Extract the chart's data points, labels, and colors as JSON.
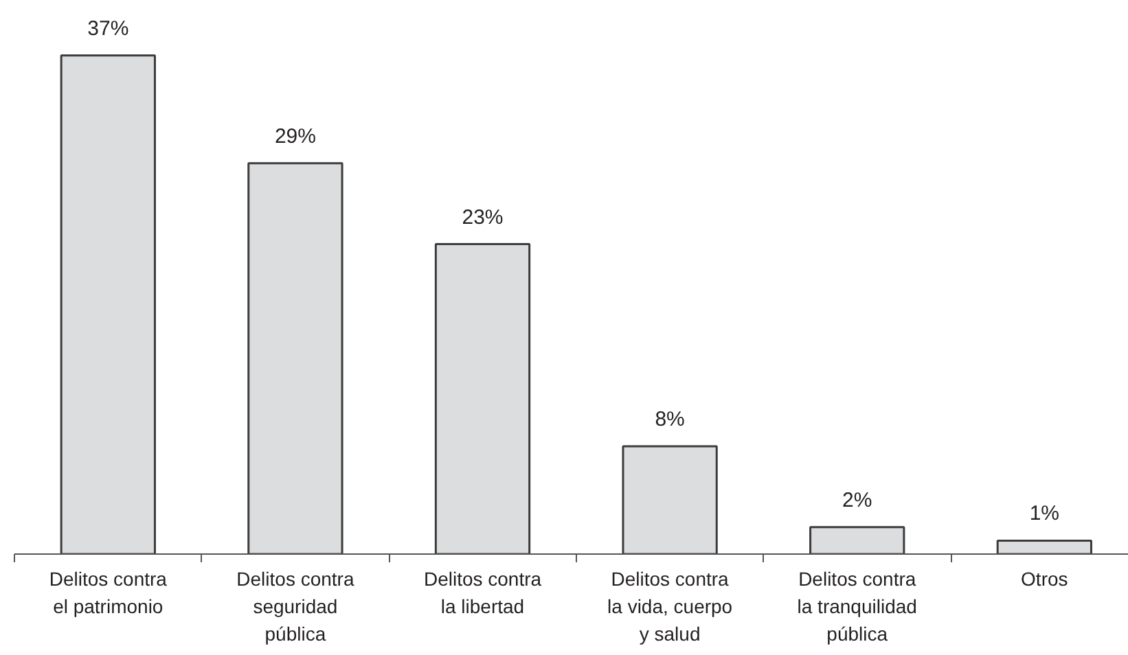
{
  "chart_data": {
    "type": "bar",
    "categories": [
      "Delitos contra\nel patrimonio",
      "Delitos contra\nseguridad\npública",
      "Delitos contra\nla libertad",
      "Delitos contra\nla vida, cuerpo\ny salud",
      "Delitos contra\nla tranquilidad\npública",
      "Otros"
    ],
    "values": [
      37,
      29,
      23,
      8,
      2,
      1
    ],
    "value_labels": [
      "37%",
      "29%",
      "23%",
      "8%",
      "2%",
      "1%"
    ],
    "color": "#dcdddf",
    "tick_labels": "x"
  }
}
